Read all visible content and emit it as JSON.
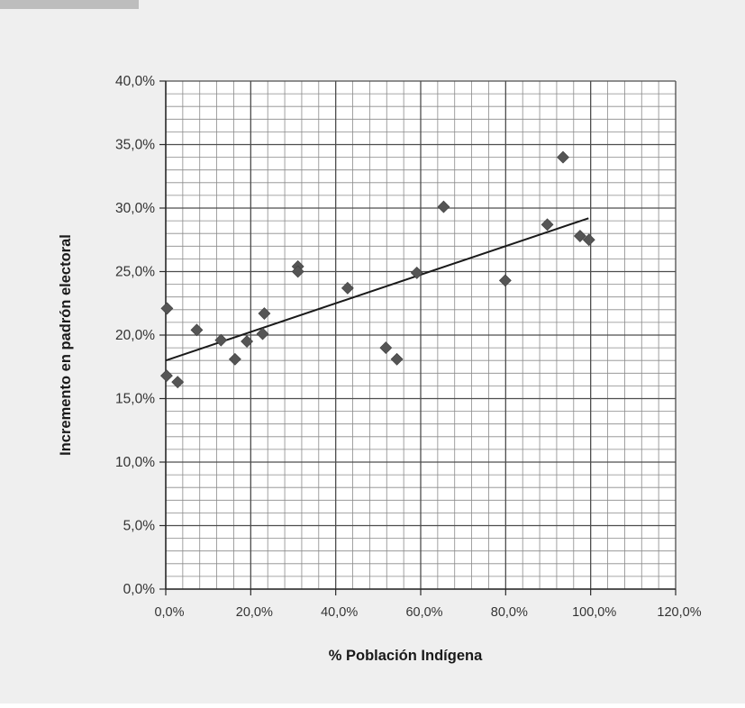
{
  "chart_data": {
    "type": "scatter",
    "title": "",
    "xlabel": "% Población Indígena",
    "ylabel": "Incremento en padrón electoral",
    "xlim": [
      0,
      120
    ],
    "ylim": [
      0,
      40
    ],
    "x_ticks": [
      0,
      20,
      40,
      60,
      80,
      100,
      120
    ],
    "y_ticks": [
      0,
      5,
      10,
      15,
      20,
      25,
      30,
      35,
      40
    ],
    "x_tick_labels": [
      "0,0%",
      "20,0%",
      "40,0%",
      "60,0%",
      "80,0%",
      "100,0%",
      "120,0%"
    ],
    "y_tick_labels": [
      "0,0%",
      "5,0%",
      "10,0%",
      "15,0%",
      "20,0%",
      "25,0%",
      "30,0%",
      "35,0%",
      "40,0%"
    ],
    "grid": true,
    "marker": "diamond",
    "marker_color": "#555555",
    "series": [
      {
        "points": [
          {
            "x": 0.3,
            "y": 22.1
          },
          {
            "x": 0.2,
            "y": 16.8
          },
          {
            "x": 2.8,
            "y": 16.3
          },
          {
            "x": 7.3,
            "y": 20.4
          },
          {
            "x": 13.0,
            "y": 19.6
          },
          {
            "x": 16.3,
            "y": 18.1
          },
          {
            "x": 19.1,
            "y": 19.5
          },
          {
            "x": 22.8,
            "y": 20.1
          },
          {
            "x": 23.2,
            "y": 21.7
          },
          {
            "x": 31.1,
            "y": 25.4
          },
          {
            "x": 31.1,
            "y": 25.0
          },
          {
            "x": 42.8,
            "y": 23.7
          },
          {
            "x": 51.8,
            "y": 19.0
          },
          {
            "x": 54.4,
            "y": 18.1
          },
          {
            "x": 59.1,
            "y": 24.9
          },
          {
            "x": 65.4,
            "y": 30.1
          },
          {
            "x": 79.9,
            "y": 24.3
          },
          {
            "x": 89.8,
            "y": 28.7
          },
          {
            "x": 93.5,
            "y": 34.0
          },
          {
            "x": 97.5,
            "y": 27.8
          },
          {
            "x": 99.6,
            "y": 27.5
          }
        ]
      }
    ],
    "trendline": {
      "type": "linear",
      "x": [
        0,
        99.5
      ],
      "y": [
        18.0,
        29.2
      ],
      "color": "#1a1a1a"
    }
  }
}
